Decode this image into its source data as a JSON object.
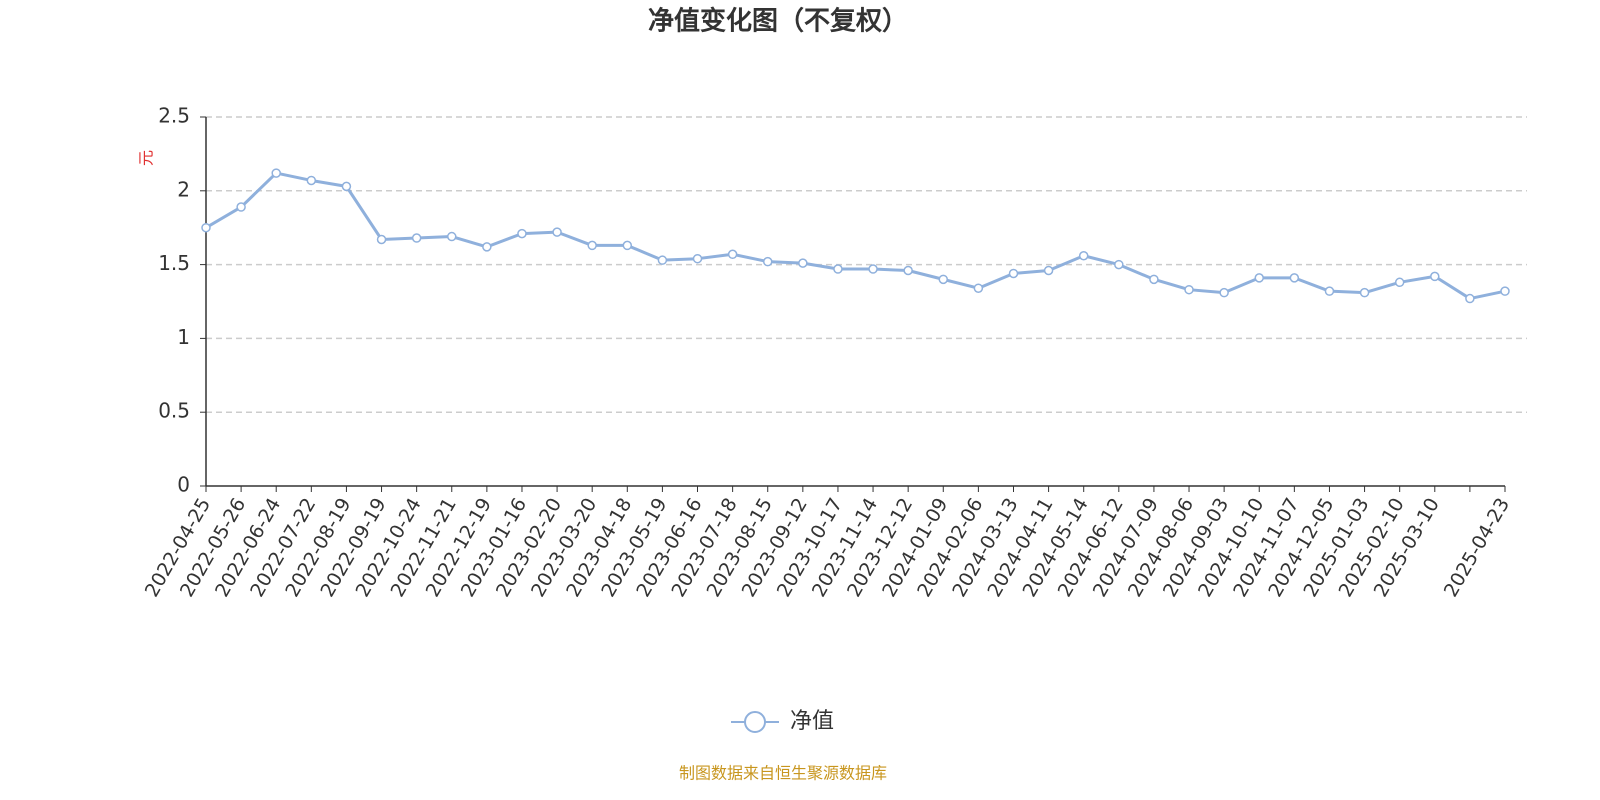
{
  "chart_data": {
    "type": "line",
    "title": "净值变化图（不复权）",
    "y_label": "元",
    "source": "制图数据来自恒生聚源数据库",
    "categories": [
      "2022-04-25",
      "2022-05-26",
      "2022-06-24",
      "2022-07-22",
      "2022-08-19",
      "2022-09-19",
      "2022-10-24",
      "2022-11-21",
      "2022-12-19",
      "2023-01-16",
      "2023-02-20",
      "2023-03-20",
      "2023-04-18",
      "2023-05-19",
      "2023-06-16",
      "2023-07-18",
      "2023-08-15",
      "2023-09-12",
      "2023-10-17",
      "2023-11-14",
      "2023-12-12",
      "2024-01-09",
      "2024-02-06",
      "2024-03-13",
      "2024-04-11",
      "2024-05-14",
      "2024-06-12",
      "2024-07-09",
      "2024-08-06",
      "2024-09-03",
      "2024-10-10",
      "2024-11-07",
      "2024-12-05",
      "2025-01-03",
      "2025-02-10",
      "2025-03-10",
      null,
      "2025-04-23"
    ],
    "series": [
      {
        "name": "净值",
        "color": "#8fb0dc",
        "values": [
          1.75,
          1.89,
          2.12,
          2.07,
          2.03,
          1.67,
          1.68,
          1.69,
          1.62,
          1.71,
          1.72,
          1.63,
          1.63,
          1.53,
          1.54,
          1.57,
          1.52,
          1.51,
          1.47,
          1.47,
          1.46,
          1.4,
          1.34,
          1.44,
          1.46,
          1.56,
          1.5,
          1.4,
          1.33,
          1.31,
          1.41,
          1.41,
          1.32,
          1.31,
          1.38,
          1.42,
          1.27,
          1.32
        ]
      }
    ],
    "ylim": [
      0,
      2.5
    ],
    "yticks": [
      0,
      0.5,
      1,
      1.5,
      2,
      2.5
    ],
    "grid": true,
    "legend": "bottom"
  }
}
